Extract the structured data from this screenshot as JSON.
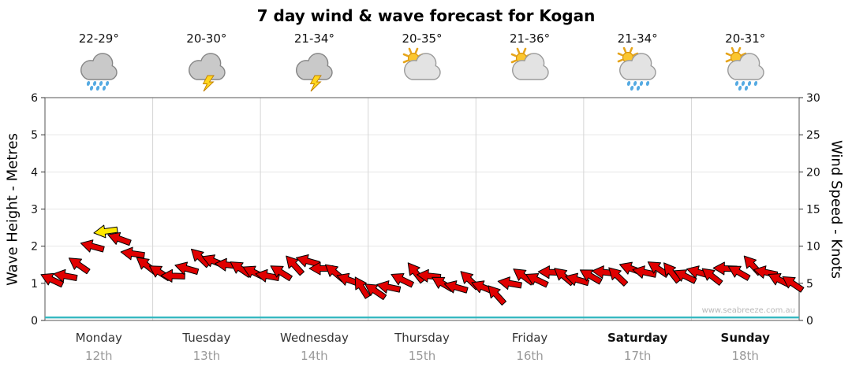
{
  "title": "7 day wind & wave forecast for Kogan",
  "watermark": "www.seabreeze.com.au",
  "days": [
    {
      "name": "Monday",
      "date": "12th",
      "temp": "22-29°",
      "icon": "rain",
      "bold": false
    },
    {
      "name": "Tuesday",
      "date": "13th",
      "temp": "20-30°",
      "icon": "storm",
      "bold": false
    },
    {
      "name": "Wednesday",
      "date": "14th",
      "temp": "21-34°",
      "icon": "storm",
      "bold": false
    },
    {
      "name": "Thursday",
      "date": "15th",
      "temp": "20-35°",
      "icon": "partly-cloudy",
      "bold": false
    },
    {
      "name": "Friday",
      "date": "16th",
      "temp": "21-36°",
      "icon": "partly-cloudy",
      "bold": false
    },
    {
      "name": "Saturday",
      "date": "17th",
      "temp": "21-34°",
      "icon": "sun-showers",
      "bold": true
    },
    {
      "name": "Sunday",
      "date": "18th",
      "temp": "20-31°",
      "icon": "sun-showers",
      "bold": true
    }
  ],
  "chart_data": {
    "type": "wind-arrow-series",
    "title": "7 day wind & wave forecast for Kogan",
    "categories": [
      "Monday",
      "Tuesday",
      "Wednesday",
      "Thursday",
      "Friday",
      "Saturday",
      "Sunday"
    ],
    "dates": [
      "12th",
      "13th",
      "14th",
      "15th",
      "16th",
      "17th",
      "18th"
    ],
    "left_axis": {
      "label": "Wave Height - Metres",
      "min": 0,
      "max": 6,
      "ticks": [
        "0",
        "1",
        "2",
        "3",
        "4",
        "5",
        "6"
      ]
    },
    "right_axis": {
      "label": "Wind Speed - Knots",
      "min": 0,
      "max": 30,
      "ticks": [
        "0",
        "5",
        "10",
        "15",
        "20",
        "25",
        "30"
      ]
    },
    "wave_height_m_flat": 0.08,
    "wind_knots": [
      5.5,
      6.0,
      7.5,
      10.0,
      12.0,
      11.0,
      9.0,
      7.5,
      6.5,
      6.0,
      7.0,
      8.5,
      8.0,
      7.5,
      7.0,
      6.5,
      6.0,
      6.5,
      7.5,
      8.0,
      7.0,
      6.5,
      5.5,
      4.5,
      4.0,
      4.5,
      5.5,
      6.5,
      6.0,
      5.0,
      4.5,
      5.5,
      4.5,
      3.5,
      5.0,
      6.0,
      5.5,
      6.5,
      6.0,
      5.5,
      6.0,
      6.5,
      6.0,
      7.0,
      6.5,
      7.0,
      6.5,
      6.0,
      6.5,
      6.0,
      7.0,
      6.5,
      7.5,
      6.5,
      5.5,
      5.0
    ],
    "wind_dir_deg": [
      205,
      190,
      215,
      195,
      172,
      200,
      188,
      218,
      212,
      182,
      196,
      224,
      202,
      186,
      214,
      206,
      190,
      212,
      228,
      196,
      180,
      220,
      200,
      238,
      214,
      192,
      206,
      232,
      186,
      210,
      196,
      224,
      202,
      228,
      190,
      216,
      206,
      182,
      220,
      196,
      210,
      186,
      224,
      200,
      192,
      214,
      232,
      206,
      196,
      218,
      182,
      210,
      228,
      192,
      206,
      214
    ],
    "highlight_index": 4,
    "colors": {
      "arrow": "#e00000",
      "outline": "#000000",
      "highlight": "#ffe800",
      "wave": "#35b8c0",
      "grid_v": "#d6d6d6",
      "grid_h": "#e6e6e6",
      "axis": "#555555"
    }
  }
}
